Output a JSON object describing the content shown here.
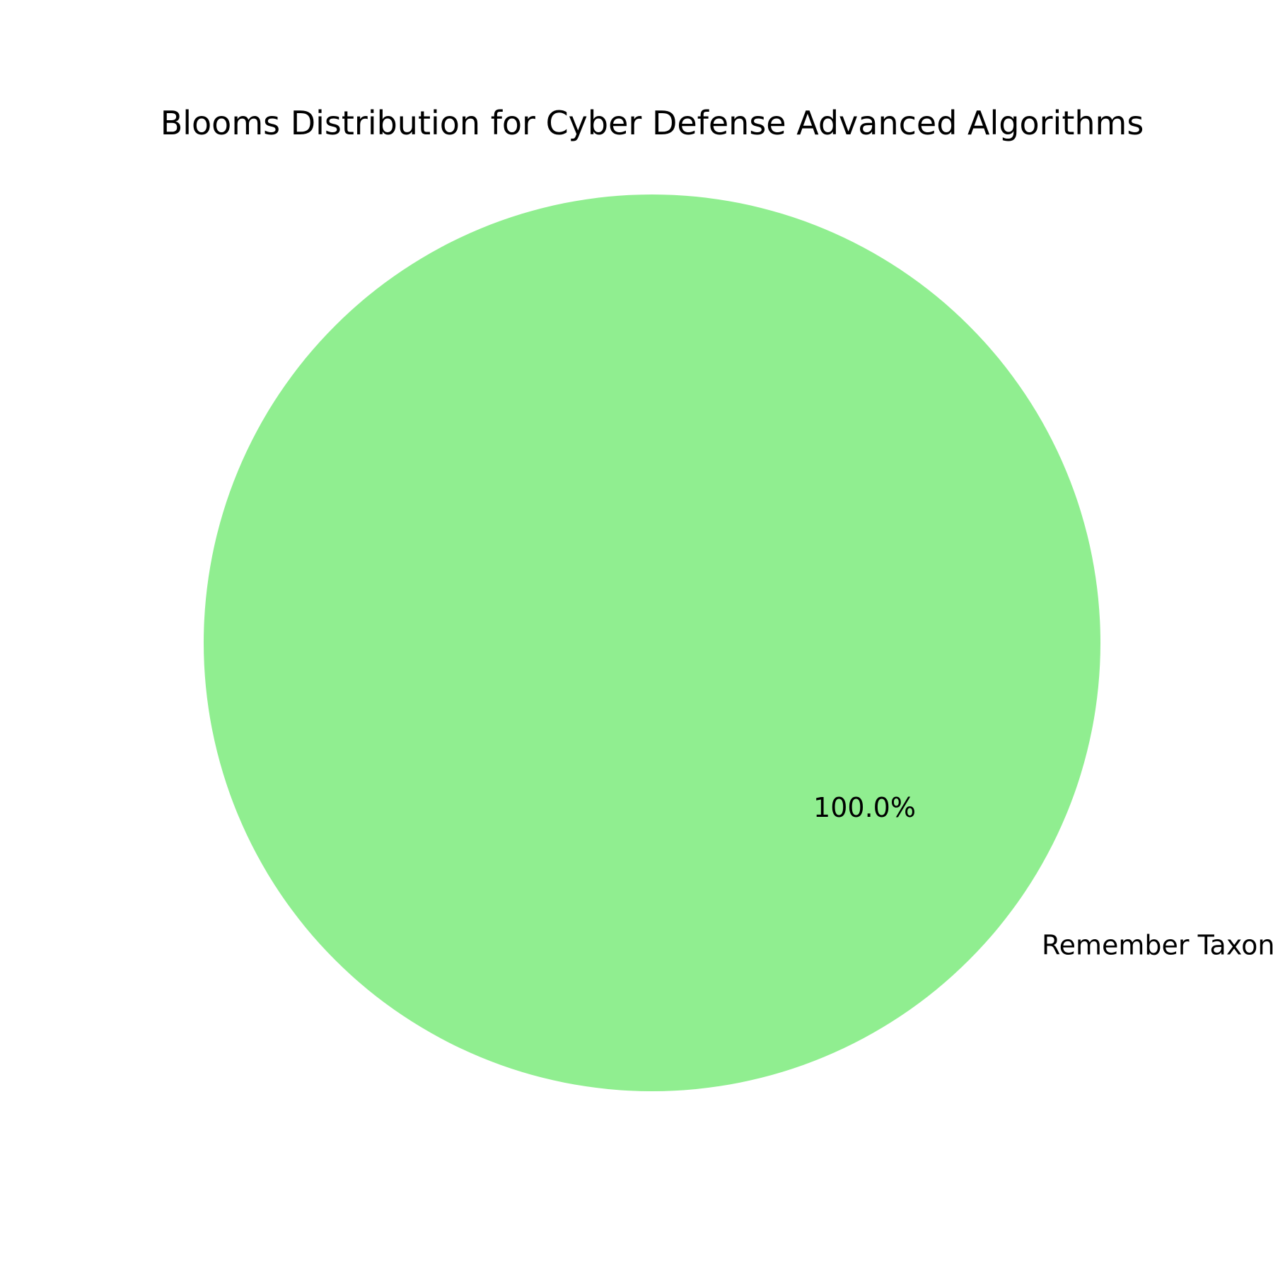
{
  "chart_data": {
    "type": "pie",
    "title": "Blooms Distribution for Cyber Defense Advanced Algorithms",
    "slices": [
      {
        "label": "Remember Taxonomy",
        "value": 100.0,
        "percent_label": "100.0%",
        "color": "#90ee90"
      }
    ],
    "legend": "none"
  }
}
